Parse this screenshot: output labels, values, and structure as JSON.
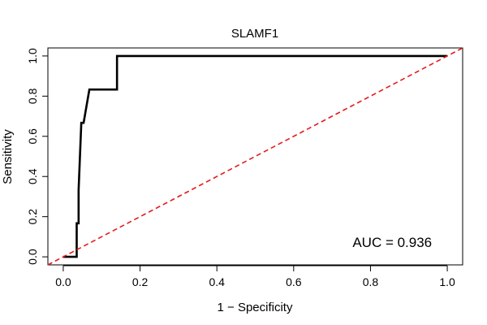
{
  "chart_data": {
    "type": "line",
    "title": "SLAMF1",
    "xlabel": "1 − Specificity",
    "ylabel": "Sensitivity",
    "xlim": [
      -0.04,
      1.04
    ],
    "ylim": [
      -0.04,
      1.04
    ],
    "grid": false,
    "x_ticks": [
      0.0,
      0.2,
      0.4,
      0.6,
      0.8,
      1.0
    ],
    "x_tick_labels": [
      "0.0",
      "0.2",
      "0.4",
      "0.6",
      "0.8",
      "1.0"
    ],
    "y_ticks": [
      0.0,
      0.2,
      0.4,
      0.6,
      0.8,
      1.0
    ],
    "y_tick_labels": [
      "0.0",
      "0.2",
      "0.4",
      "0.6",
      "0.8",
      "1.0"
    ],
    "series": [
      {
        "style": "solid",
        "color": "#000000",
        "x": [
          0.0,
          0.035,
          0.035,
          0.04,
          0.04,
          0.047,
          0.047,
          0.053,
          0.053,
          0.068,
          0.068,
          0.14,
          0.14,
          1.0
        ],
        "y": [
          0.0,
          0.0,
          0.167,
          0.167,
          0.333,
          0.667,
          0.667,
          0.667,
          0.667,
          0.833,
          0.833,
          0.833,
          1.0,
          1.0
        ]
      },
      {
        "style": "dashed",
        "color": "#e31a1c",
        "x": [
          -0.04,
          1.04
        ],
        "y": [
          -0.04,
          1.04
        ]
      }
    ],
    "annotations": [
      {
        "text": "AUC = 0.936",
        "x": 0.96,
        "y": 0.05
      }
    ]
  }
}
